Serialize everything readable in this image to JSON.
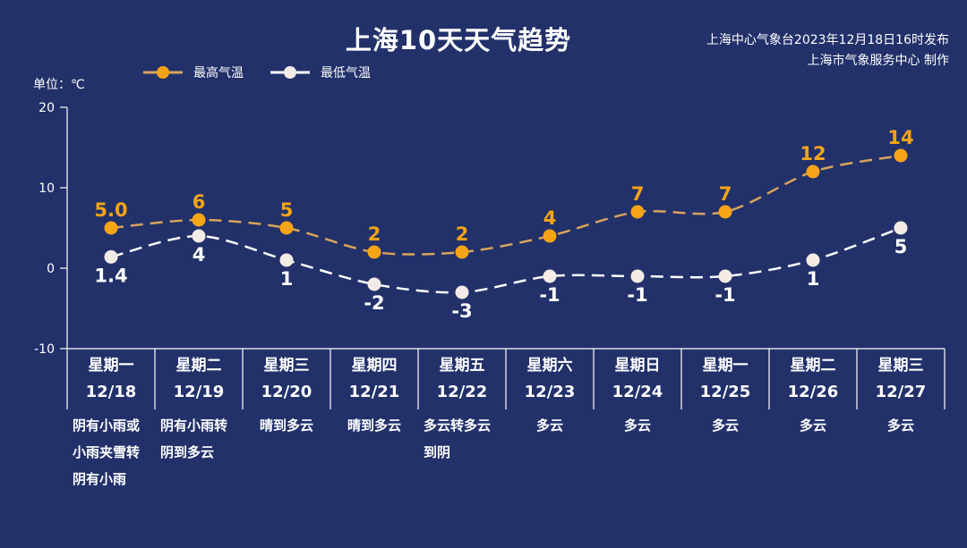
{
  "header": {
    "title": "上海10天天气趋势",
    "publisher_line1": "上海中心气象台2023年12月18日16时发布",
    "publisher_line2": "上海市气象服务中心 制作",
    "unit_label": "单位：℃"
  },
  "legend": {
    "high_label": "最高气温",
    "low_label": "最低气温"
  },
  "colors": {
    "background": "#22316a",
    "high": "#f5a418",
    "low": "#ffffff",
    "axis": "#ffffff"
  },
  "days": [
    {
      "weekday": "星期一",
      "date": "12/18",
      "weather": [
        "阴有小雨或",
        "小雨夹雪转",
        "阴有小雨"
      ]
    },
    {
      "weekday": "星期二",
      "date": "12/19",
      "weather": [
        "阴有小雨转",
        "阴到多云"
      ]
    },
    {
      "weekday": "星期三",
      "date": "12/20",
      "weather": [
        "晴到多云"
      ]
    },
    {
      "weekday": "星期四",
      "date": "12/21",
      "weather": [
        "晴到多云"
      ]
    },
    {
      "weekday": "星期五",
      "date": "12/22",
      "weather": [
        "多云转多云",
        "到阴"
      ]
    },
    {
      "weekday": "星期六",
      "date": "12/23",
      "weather": [
        "多云"
      ]
    },
    {
      "weekday": "星期日",
      "date": "12/24",
      "weather": [
        "多云"
      ]
    },
    {
      "weekday": "星期一",
      "date": "12/25",
      "weather": [
        "多云"
      ]
    },
    {
      "weekday": "星期二",
      "date": "12/26",
      "weather": [
        "多云"
      ]
    },
    {
      "weekday": "星期三",
      "date": "12/27",
      "weather": [
        "多云"
      ]
    }
  ],
  "chart_data": {
    "type": "line",
    "title": "上海10天天气趋势",
    "xlabel": "",
    "ylabel": "单位：℃",
    "categories": [
      "12/18",
      "12/19",
      "12/20",
      "12/21",
      "12/22",
      "12/23",
      "12/24",
      "12/25",
      "12/26",
      "12/27"
    ],
    "series": [
      {
        "name": "最高气温",
        "values": [
          5.0,
          6,
          5,
          2,
          2,
          4,
          7,
          7,
          12,
          14
        ],
        "labels": [
          "5.0",
          "6",
          "5",
          "2",
          "2",
          "4",
          "7",
          "7",
          "12",
          "14"
        ],
        "color": "#f5a418",
        "style": "dashed"
      },
      {
        "name": "最低气温",
        "values": [
          1.4,
          4,
          1,
          -2,
          -3,
          -1,
          -1,
          -1,
          1,
          5
        ],
        "labels": [
          "1.4",
          "4",
          "1",
          "-2",
          "-3",
          "-1",
          "-1",
          "-1",
          "1",
          "5"
        ],
        "color": "#ffffff",
        "style": "dashed"
      }
    ],
    "ylim": [
      -10,
      20
    ],
    "yticks": [
      -10,
      0,
      10,
      20
    ],
    "grid": false,
    "legend_position": "top-left"
  }
}
